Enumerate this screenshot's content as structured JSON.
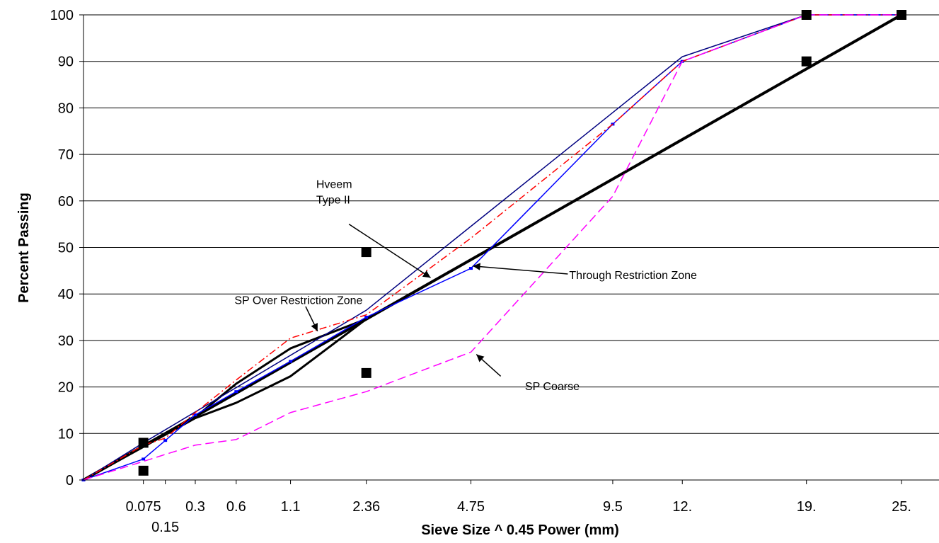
{
  "chart_data": {
    "type": "line",
    "title": "",
    "xlabel": "Sieve Size ^ 0.45 Power (mm)",
    "ylabel": "Percent Passing",
    "scale_x": "sieve size raised to 0.45 power",
    "xlim": [
      0,
      25
    ],
    "ylim": [
      0,
      100
    ],
    "y_ticks": [
      0,
      10,
      20,
      30,
      40,
      50,
      60,
      70,
      80,
      90,
      100
    ],
    "x_ticks": [
      {
        "value": 0.075,
        "label": "0.075"
      },
      {
        "value": 0.15,
        "label": "0.15"
      },
      {
        "value": 0.3,
        "label": "0.3"
      },
      {
        "value": 0.6,
        "label": "0.6"
      },
      {
        "value": 1.18,
        "label": "1.1"
      },
      {
        "value": 2.36,
        "label": "2.36"
      },
      {
        "value": 4.75,
        "label": "4.75"
      },
      {
        "value": 9.5,
        "label": "9.5"
      },
      {
        "value": 12.5,
        "label": "12."
      },
      {
        "value": 19,
        "label": "19."
      },
      {
        "value": 25,
        "label": "25."
      }
    ],
    "grid": "horizontal",
    "legend": "none",
    "series": [
      {
        "id": "max-density-line",
        "color": "#000000",
        "style": "thick-solid",
        "points": [
          [
            0,
            0
          ],
          [
            25,
            100
          ]
        ]
      },
      {
        "id": "control-points",
        "color": "#000000",
        "style": "square-markers",
        "points": [
          [
            0.075,
            8
          ],
          [
            0.075,
            2
          ],
          [
            2.36,
            49
          ],
          [
            2.36,
            23
          ],
          [
            19,
            100
          ],
          [
            19,
            90
          ],
          [
            25,
            100
          ]
        ]
      },
      {
        "id": "restricted-zone-boundary",
        "color": "#000000",
        "style": "medium-solid",
        "points": [
          [
            0,
            0
          ],
          [
            0.3,
            13.3
          ],
          [
            0.6,
            16.6
          ],
          [
            1.18,
            22.3
          ],
          [
            2.36,
            34.6
          ],
          [
            1.18,
            28.3
          ],
          [
            0.6,
            20.7
          ],
          [
            0.3,
            13.5
          ],
          [
            0,
            0
          ]
        ]
      },
      {
        "id": "hveem-type-ii",
        "color": "#000080",
        "style": "thin-solid",
        "points": [
          [
            0,
            0
          ],
          [
            0.075,
            8
          ],
          [
            2.36,
            36.5
          ],
          [
            12.5,
            91
          ],
          [
            19,
            100
          ],
          [
            25,
            100
          ]
        ]
      },
      {
        "id": "through-restriction-zone",
        "color": "#0000ff",
        "style": "solid-small-markers",
        "points": [
          [
            0,
            0
          ],
          [
            0.075,
            4.5
          ],
          [
            0.15,
            8.5
          ],
          [
            0.3,
            14
          ],
          [
            0.6,
            19
          ],
          [
            1.18,
            25.5
          ],
          [
            2.36,
            35
          ],
          [
            4.75,
            45.5
          ],
          [
            9.5,
            76.5
          ],
          [
            12.5,
            90
          ],
          [
            19,
            100
          ],
          [
            25,
            100
          ]
        ]
      },
      {
        "id": "sp-over-restriction-zone",
        "color": "#ff0000",
        "style": "dash-dot",
        "points": [
          [
            0,
            0
          ],
          [
            0.075,
            7.5
          ],
          [
            0.15,
            9
          ],
          [
            0.3,
            14.5
          ],
          [
            0.6,
            21.5
          ],
          [
            1.18,
            30.5
          ],
          [
            2.36,
            35.5
          ],
          [
            4.75,
            52
          ],
          [
            9.5,
            76.5
          ],
          [
            12.5,
            90
          ],
          [
            19,
            100
          ],
          [
            25,
            100
          ]
        ]
      },
      {
        "id": "sp-coarse",
        "color": "#ff00ff",
        "style": "dashed",
        "points": [
          [
            0,
            0
          ],
          [
            0.075,
            4
          ],
          [
            0.15,
            5.5
          ],
          [
            0.3,
            7.5
          ],
          [
            0.6,
            8.7
          ],
          [
            1.18,
            14.5
          ],
          [
            2.36,
            19
          ],
          [
            4.75,
            27.5
          ],
          [
            9.5,
            61
          ],
          [
            12.5,
            90
          ],
          [
            19,
            100
          ],
          [
            25,
            100
          ]
        ]
      }
    ],
    "annotations": [
      {
        "id": "hveem",
        "lines": [
          "Hveem",
          "Type II"
        ],
        "text_at": [
          1.53,
          62.8
        ],
        "arrow_from": [
          2.05,
          55
        ],
        "arrow_to": [
          3.72,
          43.5
        ]
      },
      {
        "id": "through",
        "lines": [
          "Through Restriction Zone"
        ],
        "text_at": [
          7.85,
          43.2
        ],
        "arrow_from": [
          7.8,
          44.3
        ],
        "arrow_to": [
          4.8,
          46
        ]
      },
      {
        "id": "over",
        "lines": [
          "SP Over Restriction Zone"
        ],
        "text_at": [
          0.585,
          37.8
        ],
        "arrow_from": [
          1.38,
          37.3
        ],
        "arrow_to": [
          1.55,
          32
        ]
      },
      {
        "id": "coarse",
        "lines": [
          "SP Coarse"
        ],
        "text_at": [
          6.35,
          19.3
        ],
        "arrow_from": [
          5.6,
          22.3
        ],
        "arrow_to": [
          4.9,
          27
        ]
      }
    ]
  }
}
